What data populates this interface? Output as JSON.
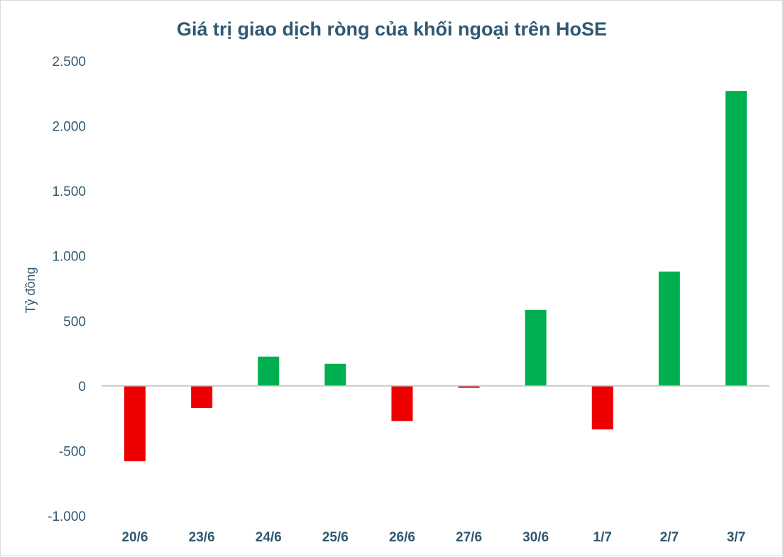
{
  "chart_data": {
    "type": "bar",
    "title": "Giá trị giao dịch ròng của khối ngoại trên HoSE",
    "xlabel": "",
    "ylabel": "Tỷ đồng",
    "categories": [
      "20/6",
      "23/6",
      "24/6",
      "25/6",
      "26/6",
      "27/6",
      "30/6",
      "1/7",
      "2/7",
      "3/7"
    ],
    "values": [
      -580,
      -170,
      225,
      170,
      -270,
      -15,
      585,
      -335,
      880,
      2270
    ],
    "ylim": [
      -1000,
      2500
    ],
    "yticks": [
      2500,
      2000,
      1500,
      1000,
      500,
      0,
      -500,
      -1000
    ],
    "ytick_labels": [
      "2.500",
      "2.000",
      "1.500",
      "1.000",
      "500",
      "0",
      "-500",
      "-1.000"
    ],
    "grid": false,
    "colors": {
      "positive": "#00b050",
      "negative": "#ee0000",
      "axis": "#bfbfbf",
      "text": "#2f5872"
    }
  }
}
